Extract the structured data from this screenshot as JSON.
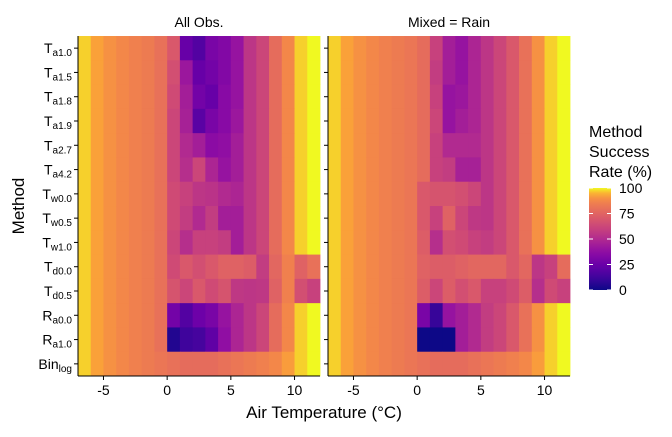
{
  "chart_data": {
    "type": "heatmap",
    "xlabel": "Air Temperature (°C)",
    "ylabel": "Method",
    "x_ticks": [
      -5,
      0,
      5,
      10
    ],
    "xlim": [
      -7,
      12
    ],
    "x_bin_width": 1,
    "x": [
      -6.5,
      -5.5,
      -4.5,
      -3.5,
      -2.5,
      -1.5,
      -0.5,
      0.5,
      1.5,
      2.5,
      3.5,
      4.5,
      5.5,
      6.5,
      7.5,
      8.5,
      9.5,
      10.5,
      11.5
    ],
    "methods": [
      {
        "base": "T",
        "sub": "a1.0"
      },
      {
        "base": "T",
        "sub": "a1.5"
      },
      {
        "base": "T",
        "sub": "a1.8"
      },
      {
        "base": "T",
        "sub": "a1.9"
      },
      {
        "base": "T",
        "sub": "a2.7"
      },
      {
        "base": "T",
        "sub": "a4.2"
      },
      {
        "base": "T",
        "sub": "w0.0"
      },
      {
        "base": "T",
        "sub": "w0.5"
      },
      {
        "base": "T",
        "sub": "w1.0"
      },
      {
        "base": "T",
        "sub": "d0.0"
      },
      {
        "base": "T",
        "sub": "d0.5"
      },
      {
        "base": "R",
        "sub": "a0.0"
      },
      {
        "base": "R",
        "sub": "a1.0"
      },
      {
        "base": "Bin",
        "sub": "log"
      }
    ],
    "panels": [
      {
        "title": "All Obs.",
        "values": [
          [
            97,
            93,
            90,
            88,
            86,
            84,
            80,
            70,
            24,
            18,
            30,
            33,
            40,
            55,
            62,
            78,
            88,
            97,
            100
          ],
          [
            97,
            93,
            90,
            88,
            86,
            84,
            80,
            66,
            42,
            24,
            28,
            33,
            40,
            55,
            62,
            78,
            88,
            97,
            100
          ],
          [
            97,
            93,
            90,
            88,
            86,
            84,
            80,
            64,
            45,
            28,
            24,
            35,
            40,
            55,
            62,
            78,
            88,
            97,
            100
          ],
          [
            97,
            93,
            90,
            88,
            86,
            84,
            80,
            62,
            46,
            20,
            30,
            35,
            42,
            55,
            62,
            78,
            88,
            97,
            100
          ],
          [
            97,
            93,
            90,
            88,
            86,
            84,
            80,
            62,
            50,
            45,
            36,
            38,
            45,
            55,
            62,
            78,
            88,
            97,
            100
          ],
          [
            97,
            93,
            90,
            88,
            86,
            84,
            80,
            62,
            52,
            62,
            48,
            40,
            45,
            55,
            62,
            78,
            88,
            97,
            100
          ],
          [
            97,
            93,
            90,
            88,
            86,
            84,
            80,
            64,
            60,
            55,
            54,
            50,
            48,
            55,
            62,
            78,
            88,
            97,
            100
          ],
          [
            97,
            93,
            90,
            88,
            86,
            84,
            80,
            64,
            58,
            50,
            58,
            45,
            45,
            55,
            62,
            78,
            88,
            97,
            100
          ],
          [
            97,
            93,
            90,
            88,
            86,
            84,
            80,
            62,
            52,
            60,
            60,
            58,
            45,
            55,
            62,
            78,
            88,
            97,
            100
          ],
          [
            97,
            93,
            90,
            88,
            86,
            84,
            80,
            64,
            70,
            66,
            70,
            74,
            74,
            72,
            58,
            76,
            86,
            74,
            80
          ],
          [
            97,
            93,
            90,
            88,
            86,
            84,
            80,
            68,
            62,
            70,
            64,
            68,
            56,
            55,
            56,
            74,
            86,
            66,
            60
          ],
          [
            97,
            93,
            90,
            88,
            86,
            84,
            80,
            28,
            18,
            26,
            30,
            40,
            48,
            55,
            62,
            78,
            88,
            97,
            100
          ],
          [
            97,
            93,
            90,
            88,
            86,
            84,
            80,
            5,
            12,
            14,
            22,
            38,
            48,
            55,
            62,
            78,
            88,
            97,
            100
          ],
          [
            97,
            93,
            90,
            88,
            86,
            84,
            82,
            80,
            78,
            78,
            78,
            80,
            82,
            84,
            86,
            88,
            92,
            97,
            100
          ]
        ]
      },
      {
        "title": "Mixed = Rain",
        "values": [
          [
            97,
            93,
            90,
            88,
            86,
            84,
            82,
            78,
            60,
            45,
            40,
            48,
            55,
            62,
            70,
            80,
            90,
            97,
            100
          ],
          [
            97,
            93,
            90,
            88,
            86,
            84,
            82,
            78,
            58,
            45,
            40,
            48,
            55,
            62,
            70,
            80,
            90,
            97,
            100
          ],
          [
            97,
            93,
            90,
            88,
            86,
            84,
            82,
            78,
            60,
            40,
            42,
            48,
            55,
            62,
            70,
            80,
            90,
            97,
            100
          ],
          [
            97,
            93,
            90,
            88,
            86,
            84,
            82,
            78,
            62,
            40,
            45,
            48,
            55,
            62,
            70,
            80,
            90,
            97,
            100
          ],
          [
            97,
            93,
            90,
            88,
            86,
            84,
            82,
            78,
            60,
            50,
            50,
            50,
            55,
            62,
            70,
            80,
            90,
            97,
            100
          ],
          [
            97,
            93,
            90,
            88,
            86,
            84,
            82,
            78,
            60,
            58,
            46,
            46,
            55,
            62,
            70,
            80,
            90,
            97,
            100
          ],
          [
            97,
            93,
            90,
            88,
            86,
            84,
            82,
            70,
            68,
            68,
            66,
            62,
            55,
            62,
            70,
            80,
            90,
            97,
            100
          ],
          [
            97,
            93,
            90,
            88,
            86,
            84,
            82,
            70,
            60,
            74,
            62,
            56,
            55,
            62,
            70,
            80,
            90,
            97,
            100
          ],
          [
            97,
            93,
            90,
            88,
            86,
            84,
            82,
            72,
            52,
            66,
            64,
            60,
            58,
            62,
            70,
            80,
            90,
            97,
            100
          ],
          [
            97,
            93,
            90,
            88,
            86,
            84,
            82,
            74,
            72,
            72,
            74,
            76,
            76,
            76,
            70,
            76,
            55,
            60,
            78
          ],
          [
            97,
            93,
            90,
            88,
            86,
            84,
            82,
            72,
            62,
            72,
            66,
            70,
            60,
            60,
            64,
            72,
            52,
            64,
            60
          ],
          [
            97,
            93,
            90,
            88,
            86,
            84,
            82,
            30,
            10,
            40,
            45,
            50,
            58,
            62,
            70,
            80,
            90,
            97,
            100
          ],
          [
            97,
            93,
            90,
            88,
            86,
            84,
            82,
            0,
            0,
            0,
            45,
            50,
            58,
            62,
            70,
            80,
            90,
            97,
            100
          ],
          [
            97,
            93,
            90,
            88,
            86,
            84,
            82,
            80,
            78,
            78,
            78,
            80,
            82,
            84,
            86,
            88,
            92,
            97,
            100
          ]
        ]
      }
    ],
    "legend": {
      "title_lines": [
        "Method",
        "Success",
        "Rate (%)"
      ],
      "ticks": [
        100,
        75,
        50,
        25,
        0
      ],
      "range": [
        0,
        100
      ],
      "colormap": "plasma"
    }
  }
}
